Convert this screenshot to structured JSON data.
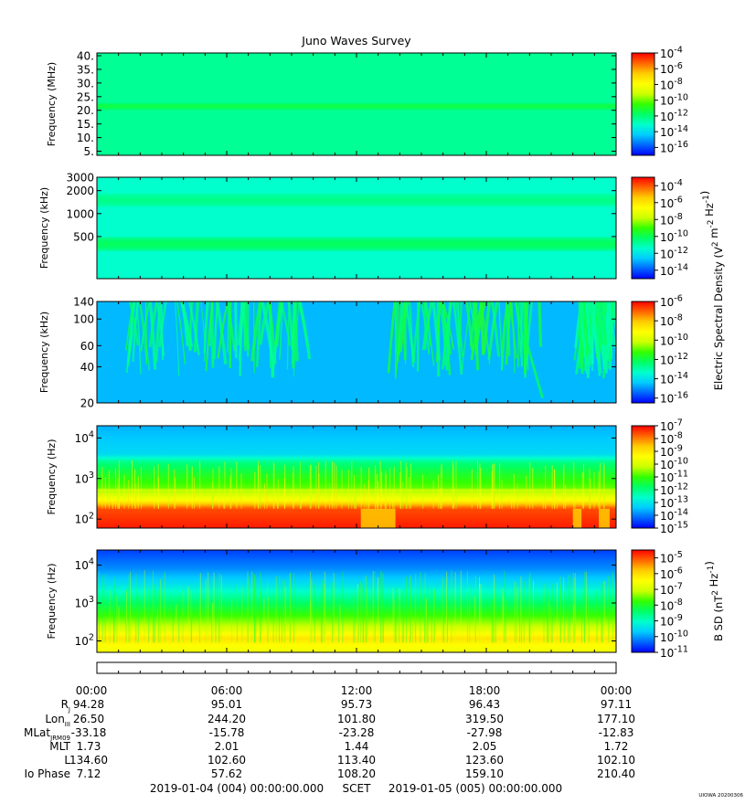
{
  "chart_data": {
    "type": "heatmap",
    "title": "Juno Waves Survey",
    "colors": {
      "scale": [
        "#0000ff",
        "#0066ff",
        "#00ccff",
        "#00ffcc",
        "#00ff66",
        "#33ff00",
        "#ccff00",
        "#ffff00",
        "#ffcc00",
        "#ff6600",
        "#ff0000"
      ]
    },
    "panels": [
      {
        "id": "hfwbr-mhz",
        "ylabel": "Frequency (MHz)",
        "yscale": "linear",
        "yticks": [
          "40.",
          "35.",
          "30.",
          "25.",
          "20.",
          "15.",
          "10.",
          "5."
        ],
        "ytick_values": [
          40,
          35,
          30,
          25,
          20,
          15,
          10,
          5
        ],
        "ylim": [
          3.5,
          41
        ],
        "cbar_ticks": [
          "10^-4",
          "10^-6",
          "10^-8",
          "10^-10",
          "10^-12",
          "10^-14",
          "10^-16"
        ],
        "cbar_exponents": [
          -4,
          -6,
          -8,
          -10,
          -12,
          -14,
          -16
        ],
        "cbar_range": [
          -17,
          -4
        ],
        "background_level": -12.4,
        "features": [
          {
            "kind": "band",
            "freq": 21.5,
            "halfwidth": 1.2,
            "level": -11.4
          },
          {
            "kind": "band",
            "freq": 6.5,
            "halfwidth": 1.5,
            "level": -12.9
          }
        ]
      },
      {
        "id": "hfr-khz",
        "ylabel": "Frequency (kHz)",
        "yscale": "log",
        "yticks": [
          "3000",
          "2000",
          "1000",
          "500"
        ],
        "ytick_values": [
          3000,
          2000,
          1000,
          500
        ],
        "ylim": [
          140,
          3000
        ],
        "cbar_ticks": [
          "10^-4",
          "10^-6",
          "10^-8",
          "10^-10",
          "10^-12",
          "10^-14"
        ],
        "cbar_exponents": [
          -4,
          -6,
          -8,
          -10,
          -12,
          -14
        ],
        "cbar_range": [
          -15,
          -3
        ],
        "background_level": -11.4,
        "features": [
          {
            "kind": "band",
            "freq": 1500,
            "halfwidth": 0.08,
            "level": -10.6
          },
          {
            "kind": "band",
            "freq": 400,
            "halfwidth": 0.09,
            "level": -10.1
          }
        ]
      },
      {
        "id": "lfr-khz",
        "ylabel": "Frequency (kHz)",
        "yscale": "log",
        "yticks": [
          "140",
          "100",
          "60",
          "40",
          "20"
        ],
        "ytick_values": [
          140,
          100,
          60,
          40,
          20
        ],
        "ylim": [
          20,
          140
        ],
        "cbar_ticks": [
          "10^-6",
          "10^-8",
          "10^-10",
          "10^-12",
          "10^-14",
          "10^-16"
        ],
        "cbar_exponents": [
          -6,
          -8,
          -10,
          -12,
          -14,
          -16
        ],
        "cbar_range": [
          -16.5,
          -6
        ],
        "background_level": -14.6,
        "features": [
          {
            "kind": "bursts",
            "t_start": 1.5,
            "t_end": 9.5,
            "level": -12.4
          },
          {
            "kind": "bursts",
            "t_start": 13.7,
            "t_end": 20.5,
            "level": -12.2
          },
          {
            "kind": "bursts",
            "t_start": 22.3,
            "t_end": 24.0,
            "level": -12.6
          }
        ]
      },
      {
        "id": "lfr-hz-e",
        "ylabel": "Frequency (Hz)",
        "yscale": "log",
        "yticks": [
          "10^4",
          "10^3",
          "10^2"
        ],
        "ytick_values": [
          10000,
          1000,
          100
        ],
        "ylim": [
          60,
          20000
        ],
        "cbar_ticks": [
          "10^-7",
          "10^-8",
          "10^-9",
          "10^-10",
          "10^-11",
          "10^-12",
          "10^-13",
          "10^-14",
          "10^-15"
        ],
        "cbar_exponents": [
          -7,
          -8,
          -9,
          -10,
          -11,
          -12,
          -13,
          -14,
          -15
        ],
        "cbar_range": [
          -15,
          -7
        ],
        "background_level": -13.6,
        "features": [
          {
            "kind": "profile",
            "points": [
              [
                20000,
                -13.6
              ],
              [
                4000,
                -13.2
              ],
              [
                2500,
                -12.0
              ],
              [
                1200,
                -11.3
              ],
              [
                600,
                -10.8
              ],
              [
                300,
                -9.5
              ],
              [
                180,
                -7.6
              ],
              [
                60,
                -7.2
              ]
            ]
          }
        ]
      },
      {
        "id": "lfr-hz-b",
        "ylabel": "Frequency (Hz)",
        "yscale": "log",
        "yticks": [
          "10^4",
          "10^3",
          "10^2"
        ],
        "ytick_values": [
          10000,
          1000,
          100
        ],
        "ylim": [
          50,
          25000
        ],
        "cbar_ticks": [
          "10^-5",
          "10^-6",
          "10^-7",
          "10^-8",
          "10^-9",
          "10^-10",
          "10^-11"
        ],
        "cbar_exponents": [
          -5,
          -6,
          -7,
          -8,
          -9,
          -10,
          -11
        ],
        "cbar_range": [
          -11,
          -4.5
        ],
        "background_level": -10.5,
        "features": [
          {
            "kind": "profile",
            "points": [
              [
                25000,
                -10.6
              ],
              [
                8000,
                -10.1
              ],
              [
                3000,
                -9.4
              ],
              [
                1000,
                -8.4
              ],
              [
                400,
                -7.6
              ],
              [
                200,
                -6.9
              ],
              [
                120,
                -6.1
              ],
              [
                60,
                -6.6
              ]
            ]
          }
        ]
      }
    ],
    "cbar_label_upper": "Electric Spectral Density (V^2 m^-2 Hz^-1)",
    "cbar_label_lower": "B SD (nT^2 Hz^-1)",
    "x_ticks": [
      "00:00",
      "06:00",
      "12:00",
      "18:00",
      "00:00"
    ],
    "x_hours": [
      0,
      6,
      12,
      18,
      24
    ],
    "ephemeris": {
      "rows": [
        {
          "label": "Rj",
          "label_main": "R",
          "label_sub": "J",
          "values": [
            "94.28",
            "95.01",
            "95.73",
            "96.43",
            "97.11"
          ]
        },
        {
          "label": "LonIII",
          "label_main": "Lon",
          "label_sub": "III",
          "values": [
            "26.50",
            "244.20",
            "101.80",
            "319.50",
            "177.10"
          ]
        },
        {
          "label": "MLatJRM09",
          "label_main": "MLat",
          "label_sub": "JRM09",
          "values": [
            "-33.18",
            "-15.78",
            "-23.28",
            "-27.98",
            "-12.83"
          ]
        },
        {
          "label": "MLT",
          "label_main": "MLT",
          "label_sub": "",
          "values": [
            "1.73",
            "2.01",
            "1.44",
            "2.05",
            "1.72"
          ]
        },
        {
          "label": "L",
          "label_main": "L",
          "label_sub": "",
          "values": [
            "134.60",
            "102.60",
            "113.40",
            "123.60",
            "102.10"
          ]
        },
        {
          "label": "Io Phase",
          "label_main": "Io Phase",
          "label_sub": "",
          "values": [
            "7.12",
            "57.62",
            "108.20",
            "159.10",
            "210.40"
          ]
        }
      ]
    },
    "footer": {
      "start": "2019-01-04 (004) 00:00:00.000",
      "mid": "SCET",
      "end": "2019-01-05 (005) 00:00:00.000"
    },
    "credit": "UIOWA 20200306"
  }
}
